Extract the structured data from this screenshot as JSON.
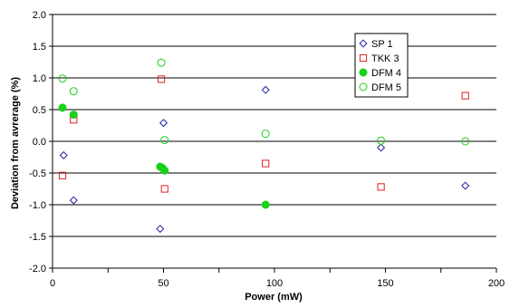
{
  "chart_data": {
    "type": "scatter",
    "title": "",
    "xlabel": "Power (mW)",
    "ylabel": "Deviation from avrerage (%)",
    "xlim": [
      0,
      200
    ],
    "ylim": [
      -2.0,
      2.0
    ],
    "x_ticks": [
      "0",
      "50",
      "100",
      "150",
      "200"
    ],
    "y_ticks": [
      "2.0",
      "1.5",
      "1.0",
      "0.5",
      "0.0",
      "-0.5",
      "-1.0",
      "-1.5",
      "-2.0"
    ],
    "grid": "horizontal",
    "legend_position": "top-right",
    "series": [
      {
        "name": "SP 1",
        "marker": "diamond-open",
        "color": "#1f1fa8",
        "points": [
          [
            5,
            -0.22
          ],
          [
            9.5,
            -0.93
          ],
          [
            48.5,
            -1.38
          ],
          [
            50,
            0.29
          ],
          [
            96,
            0.81
          ],
          [
            148,
            -0.1
          ],
          [
            186,
            -0.7
          ]
        ]
      },
      {
        "name": "TKK 3",
        "marker": "square-open",
        "color": "#e02020",
        "points": [
          [
            4.5,
            -0.54
          ],
          [
            9.5,
            0.34
          ],
          [
            49,
            0.98
          ],
          [
            50.5,
            -0.75
          ],
          [
            96,
            -0.35
          ],
          [
            148,
            -0.72
          ],
          [
            186,
            0.72
          ]
        ]
      },
      {
        "name": "DFM 4",
        "marker": "circle-filled",
        "color": "#19d119",
        "points": [
          [
            4.5,
            0.53
          ],
          [
            9.5,
            0.42
          ],
          [
            48.5,
            -0.4
          ],
          [
            49.5,
            -0.42
          ],
          [
            50.5,
            -0.46
          ],
          [
            96,
            -1.0
          ]
        ]
      },
      {
        "name": "DFM 5",
        "marker": "circle-open",
        "color": "#19d119",
        "points": [
          [
            4.5,
            0.99
          ],
          [
            9.5,
            0.79
          ],
          [
            49,
            1.24
          ],
          [
            50.5,
            0.02
          ],
          [
            96,
            0.12
          ],
          [
            148,
            0.01
          ],
          [
            186,
            0.0
          ]
        ]
      }
    ]
  }
}
